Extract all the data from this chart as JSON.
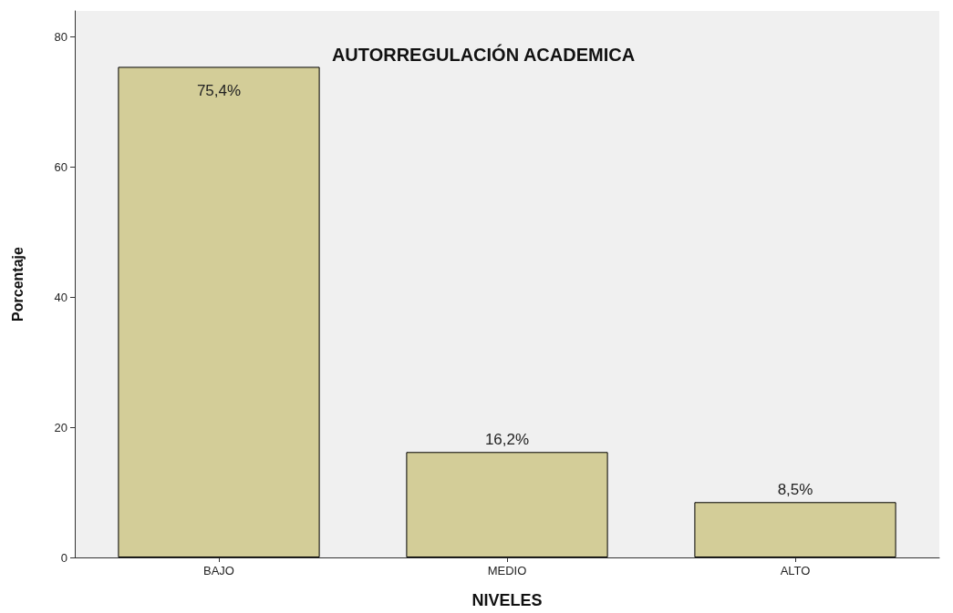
{
  "chart_data": {
    "type": "bar",
    "title": "AUTORREGULACIÓN ACADEMICA",
    "xlabel": "NIVELES",
    "ylabel": "Porcentaje",
    "categories": [
      "BAJO",
      "MEDIO",
      "ALTO"
    ],
    "values": [
      75.4,
      16.2,
      8.5
    ],
    "value_labels": [
      "75,4%",
      "16,2%",
      "8,5%"
    ],
    "color": "#d3cd98",
    "ylim": [
      0,
      84
    ],
    "yticks": [
      0,
      20,
      40,
      60,
      80
    ],
    "grid": false
  }
}
